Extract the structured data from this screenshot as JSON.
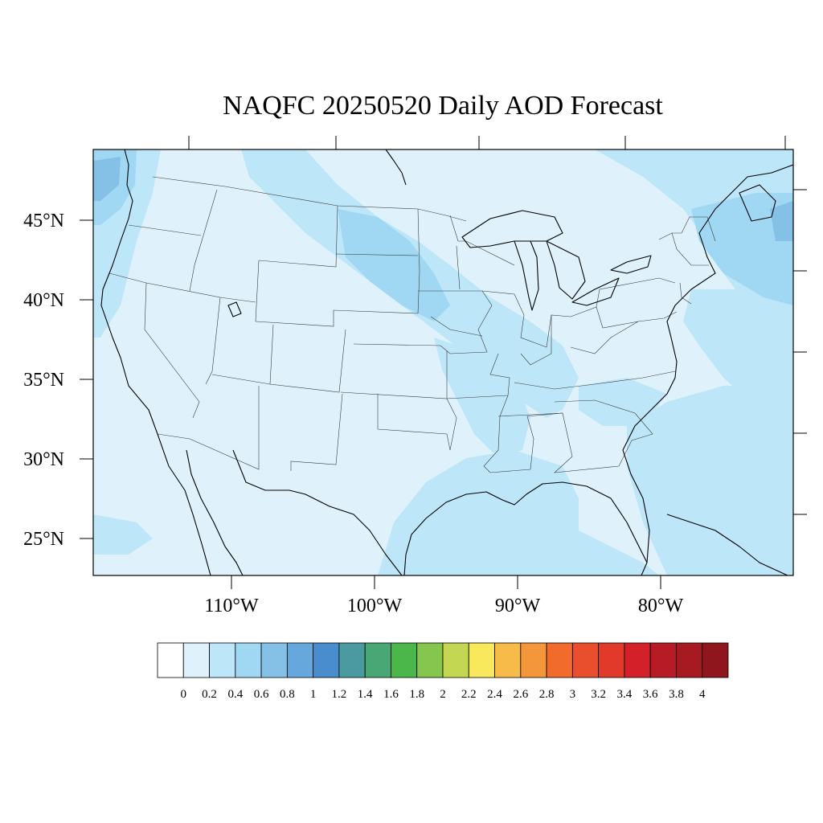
{
  "title": "NAQFC 20250520 Daily AOD Forecast",
  "map": {
    "lon_labels": [
      "110°W",
      "100°W",
      "90°W",
      "80°W"
    ],
    "lat_labels": [
      "45°N",
      "40°N",
      "35°N",
      "30°N",
      "25°N"
    ],
    "lon_range": [
      -119.5,
      -70.5
    ],
    "lat_range": [
      22.8,
      49.5
    ],
    "ocean_color": "#c9e9f8"
  },
  "colorbar": {
    "labels": [
      "0",
      "0.2",
      "0.4",
      "0.6",
      "0.8",
      "1",
      "1.2",
      "1.4",
      "1.6",
      "1.8",
      "2",
      "2.2",
      "2.4",
      "2.6",
      "2.8",
      "3",
      "3.2",
      "3.4",
      "3.6",
      "3.8",
      "4"
    ],
    "colors": [
      "#ffffff",
      "#dff2fb",
      "#bde6f8",
      "#a0d8f3",
      "#85c0e6",
      "#67a8dc",
      "#4a8dcc",
      "#4a9a9f",
      "#48a774",
      "#4bb74a",
      "#86c64e",
      "#c4d753",
      "#f8e85b",
      "#f6bb48",
      "#f4973a",
      "#f06b2c",
      "#e94f2c",
      "#e13a2b",
      "#d42129",
      "#b71b25",
      "#a81a21",
      "#8e161c"
    ]
  }
}
